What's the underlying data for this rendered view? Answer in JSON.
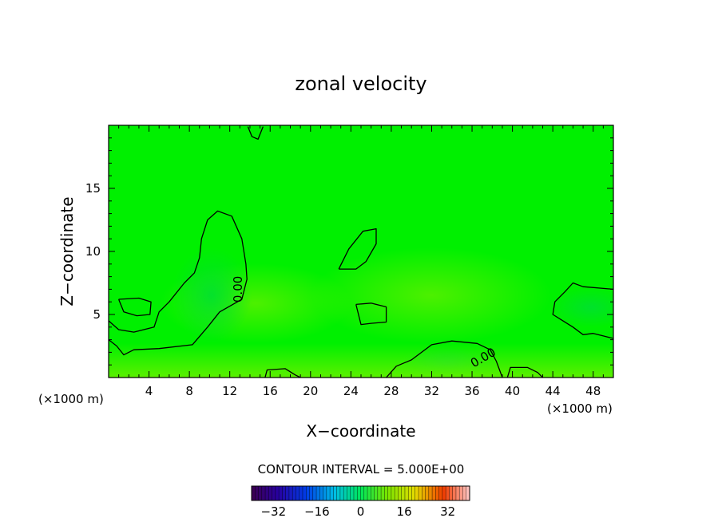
{
  "chart_data": {
    "type": "heatmap",
    "title": "zonal velocity",
    "xlabel": "X−coordinate",
    "ylabel": "Z−coordinate",
    "x_unit": "(×1000 m)",
    "z_unit": "(×1000 m)",
    "xlim": [
      0,
      50
    ],
    "ylim": [
      0,
      20
    ],
    "x_ticks": [
      4,
      8,
      12,
      16,
      20,
      24,
      28,
      32,
      36,
      40,
      44,
      48
    ],
    "y_ticks": [
      5,
      10,
      15
    ],
    "contour_interval_text": "CONTOUR INTERVAL = 5.000E+00",
    "contour_labels": [
      {
        "text": "0.00",
        "x": 13.2,
        "z": 7.0,
        "angle": -90
      },
      {
        "text": "0.00",
        "x": 37.3,
        "z": 1.3,
        "angle": -30
      }
    ],
    "colorbar": {
      "range": [
        -40,
        40
      ],
      "tick_values": [
        -32,
        -16,
        0,
        16,
        32
      ],
      "tick_labels": [
        "−32",
        "−16",
        "0",
        "16",
        "32"
      ]
    },
    "field_color": "#00f000",
    "zero_contours": [
      {
        "name": "left-lobe",
        "points": [
          [
            0,
            4.5
          ],
          [
            1,
            3.8
          ],
          [
            2.5,
            3.6
          ],
          [
            4.5,
            4.0
          ],
          [
            5,
            5.2
          ],
          [
            6,
            6.0
          ],
          [
            7.5,
            7.5
          ],
          [
            8.5,
            8.3
          ],
          [
            9,
            9.5
          ],
          [
            9.2,
            11
          ],
          [
            9.8,
            12.5
          ],
          [
            10.8,
            13.2
          ],
          [
            12.2,
            12.8
          ],
          [
            13.2,
            11
          ],
          [
            13.6,
            9
          ],
          [
            13.7,
            7.8
          ],
          [
            13.2,
            6.2
          ],
          [
            11,
            5.2
          ],
          [
            9.8,
            4
          ],
          [
            8.3,
            2.6
          ],
          [
            5,
            2.3
          ],
          [
            2.5,
            2.2
          ],
          [
            1.5,
            1.8
          ],
          [
            0.8,
            2.5
          ],
          [
            0,
            3.0
          ]
        ]
      },
      {
        "name": "small-left-loop",
        "points": [
          [
            1,
            6.2
          ],
          [
            3,
            6.3
          ],
          [
            4.2,
            6
          ],
          [
            4.1,
            5
          ],
          [
            2.8,
            4.9
          ],
          [
            1.5,
            5.2
          ],
          [
            1,
            6.2
          ]
        ]
      },
      {
        "name": "mid-upper-blob",
        "points": [
          [
            22.8,
            8.6
          ],
          [
            23.8,
            10.2
          ],
          [
            25.2,
            11.6
          ],
          [
            26.5,
            11.8
          ],
          [
            26.5,
            10.6
          ],
          [
            25.5,
            9.2
          ],
          [
            24.5,
            8.6
          ],
          [
            22.8,
            8.6
          ]
        ]
      },
      {
        "name": "mid-small-loop",
        "points": [
          [
            24.5,
            5.8
          ],
          [
            26,
            5.9
          ],
          [
            27.5,
            5.6
          ],
          [
            27.5,
            4.4
          ],
          [
            26,
            4.3
          ],
          [
            25,
            4.2
          ],
          [
            24.5,
            5.8
          ]
        ]
      },
      {
        "name": "right-bottom-lobe",
        "points": [
          [
            27.5,
            0
          ],
          [
            28.5,
            0.9
          ],
          [
            30,
            1.4
          ],
          [
            32,
            2.6
          ],
          [
            34,
            2.9
          ],
          [
            36.5,
            2.7
          ],
          [
            37.8,
            2.2
          ],
          [
            38.4,
            1.3
          ],
          [
            39,
            0
          ]
        ]
      },
      {
        "name": "right-edge-lobe",
        "points": [
          [
            50,
            7
          ],
          [
            47,
            7.2
          ],
          [
            46,
            7.5
          ],
          [
            45.2,
            6.8
          ],
          [
            44.2,
            6.0
          ],
          [
            44,
            5
          ],
          [
            45,
            4.5
          ],
          [
            46,
            4.0
          ],
          [
            47,
            3.4
          ],
          [
            48,
            3.5
          ],
          [
            49,
            3.3
          ],
          [
            50,
            3.1
          ]
        ]
      },
      {
        "name": "top-small",
        "points": [
          [
            13.8,
            19.9
          ],
          [
            14.2,
            19.1
          ],
          [
            14.8,
            18.9
          ],
          [
            15.3,
            19.9
          ]
        ]
      },
      {
        "name": "bottom-segment-a",
        "points": [
          [
            15.5,
            0
          ],
          [
            15.7,
            0.6
          ],
          [
            17.5,
            0.7
          ],
          [
            18.5,
            0.2
          ],
          [
            19,
            0
          ]
        ]
      },
      {
        "name": "bottom-segment-b",
        "points": [
          [
            39.5,
            0
          ],
          [
            39.8,
            0.8
          ],
          [
            41.5,
            0.8
          ],
          [
            42.5,
            0.4
          ],
          [
            43,
            0
          ]
        ]
      }
    ]
  }
}
